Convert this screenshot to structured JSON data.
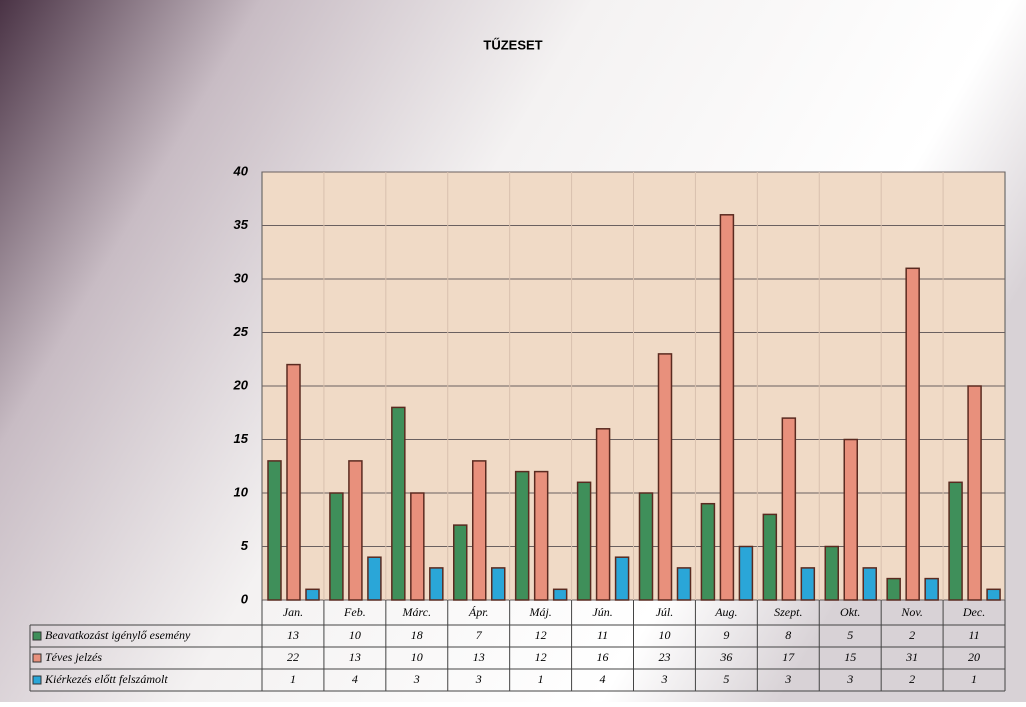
{
  "chart_data": {
    "type": "bar",
    "title": "TŰZESET",
    "categories": [
      "Jan.",
      "Feb.",
      "Márc.",
      "Ápr.",
      "Máj.",
      "Jún.",
      "Júl.",
      "Aug.",
      "Szept.",
      "Okt.",
      "Nov.",
      "Dec."
    ],
    "series": [
      {
        "name": "Beavatkozást igénylő esemény",
        "color": "#3f8f5a",
        "values": [
          13,
          10,
          18,
          7,
          12,
          11,
          10,
          9,
          8,
          5,
          2,
          11
        ]
      },
      {
        "name": "Téves jelzés",
        "color": "#e8907c",
        "values": [
          22,
          13,
          10,
          13,
          12,
          16,
          23,
          36,
          17,
          15,
          31,
          20
        ]
      },
      {
        "name": "Kiérkezés előtt felszámolt",
        "color": "#2aa6d8",
        "values": [
          1,
          4,
          3,
          3,
          1,
          4,
          3,
          5,
          3,
          3,
          2,
          1
        ]
      }
    ],
    "ylim": [
      0,
      40
    ],
    "yticks": [
      0,
      5,
      10,
      15,
      20,
      25,
      30,
      35,
      40
    ],
    "grid": true
  }
}
